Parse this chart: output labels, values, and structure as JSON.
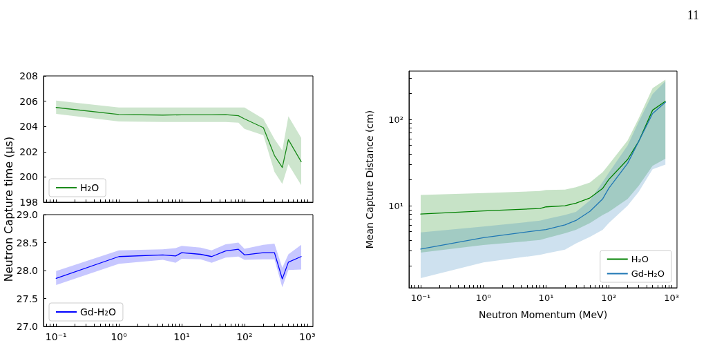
{
  "chart_data": [
    {
      "type": "line",
      "ylabel": "Neutron Capture time (μs)",
      "annotations": [
        "11"
      ],
      "x": [
        0.1,
        1,
        5,
        10,
        20,
        30,
        50,
        80,
        100,
        200,
        300,
        400,
        500,
        800
      ],
      "xlim": [
        0.063,
        1230
      ],
      "log": "x",
      "ylim": [
        198,
        208
      ],
      "yticks": [
        198,
        200,
        202,
        204,
        206,
        208
      ],
      "tick_labels": "y",
      "grid": false,
      "legend": "bottom left",
      "marker": "none",
      "line_style": "solid",
      "series": [
        {
          "name": "H₂O",
          "color": "#1a8a1a",
          "values": [
            205.5,
            204.95,
            204.9,
            204.92,
            204.92,
            204.92,
            204.93,
            204.85,
            204.6,
            203.9,
            201.7,
            200.75,
            202.95,
            201.2
          ],
          "upper": [
            206.05,
            205.5,
            205.5,
            205.5,
            205.5,
            205.5,
            205.5,
            205.5,
            205.5,
            204.6,
            203.0,
            202.1,
            204.8,
            203.1
          ],
          "lower": [
            205.0,
            204.4,
            204.35,
            204.35,
            204.35,
            204.35,
            204.35,
            204.3,
            203.8,
            203.3,
            200.4,
            199.45,
            201.0,
            199.35
          ]
        }
      ]
    },
    {
      "type": "line",
      "x": [
        0.1,
        1,
        5,
        8,
        10,
        20,
        30,
        50,
        80,
        100,
        200,
        300,
        400,
        500,
        800
      ],
      "xlim": [
        0.063,
        1230
      ],
      "log": "x",
      "ylim": [
        27,
        29
      ],
      "yticks": [
        {
          "value": 27,
          "label": "27.0"
        },
        {
          "value": 27.5,
          "label": "27.5"
        },
        {
          "value": 28,
          "label": "28.0"
        },
        {
          "value": 28.5,
          "label": "28.5"
        },
        {
          "value": 29,
          "label": "29.0"
        }
      ],
      "xticks": [
        {
          "value": 0.1,
          "label": "10⁻¹"
        },
        {
          "value": 1,
          "label": "10⁰"
        },
        {
          "value": 10,
          "label": "10¹"
        },
        {
          "value": 100,
          "label": "10²"
        },
        {
          "value": 1000,
          "label": "10³"
        }
      ],
      "grid": false,
      "legend": "bottom left",
      "marker": "none",
      "line_style": "solid",
      "series": [
        {
          "name": "Gd-H₂O",
          "color": "#0000ff",
          "values": [
            27.86,
            28.25,
            28.28,
            28.26,
            28.32,
            28.29,
            28.25,
            28.35,
            28.38,
            28.28,
            28.32,
            28.32,
            27.85,
            28.15,
            28.25
          ],
          "upper": [
            27.99,
            28.36,
            28.38,
            28.4,
            28.44,
            28.41,
            28.36,
            28.47,
            28.5,
            28.39,
            28.46,
            28.48,
            28.05,
            28.29,
            28.46
          ],
          "lower": [
            27.74,
            28.12,
            28.19,
            28.14,
            28.21,
            28.2,
            28.14,
            28.23,
            28.25,
            28.19,
            28.2,
            28.2,
            27.7,
            28.01,
            28.02
          ]
        }
      ]
    },
    {
      "type": "line",
      "xlabel": "Neutron Momentum (MeV)",
      "ylabel": "Mean Capture Distance (cm)",
      "x": [
        0.1,
        1,
        8,
        10,
        20,
        30,
        50,
        80,
        100,
        200,
        300,
        500,
        800
      ],
      "xlim": [
        0.065,
        1225
      ],
      "ylim": [
        1.12,
        363
      ],
      "log": "xy",
      "xticks": [
        {
          "value": 0.1,
          "label": "10⁻¹"
        },
        {
          "value": 1,
          "label": "10⁰"
        },
        {
          "value": 10,
          "label": "10¹"
        },
        {
          "value": 100,
          "label": "10²"
        },
        {
          "value": 1000,
          "label": "10³"
        }
      ],
      "yticks": [
        {
          "value": 10,
          "label": "10¹"
        },
        {
          "value": 100,
          "label": "10²"
        }
      ],
      "grid": false,
      "legend": "bottom right",
      "marker": "none",
      "line_style": "solid",
      "series": [
        {
          "name": "H₂O",
          "color": "#008000",
          "values": [
            8.0,
            8.7,
            9.3,
            9.7,
            10,
            10.7,
            12.3,
            15.9,
            20.1,
            34.4,
            55.6,
            128,
            162
          ],
          "upper": [
            13.3,
            14.0,
            14.8,
            15.2,
            15.4,
            16.4,
            18.6,
            24.5,
            30,
            57,
            103,
            230,
            289
          ],
          "lower": [
            2.86,
            3.5,
            4.0,
            4.2,
            4.8,
            5.25,
            6.3,
            7.8,
            8.5,
            12,
            17,
            29,
            35
          ]
        },
        {
          "name": "Gd-H₂O",
          "color": "#1f77b4",
          "values": [
            3.15,
            4.26,
            5.2,
            5.3,
            6.0,
            6.75,
            8.6,
            12.0,
            15.9,
            31,
            55.6,
            117,
            158
          ],
          "upper": [
            4.9,
            5.75,
            6.7,
            7.0,
            7.8,
            8.5,
            11.5,
            18.9,
            24,
            50,
            94,
            197,
            277
          ],
          "lower": [
            1.45,
            2.2,
            2.7,
            2.8,
            3.1,
            3.65,
            4.36,
            5.25,
            6.3,
            10,
            14.5,
            26.5,
            30
          ]
        }
      ]
    }
  ]
}
